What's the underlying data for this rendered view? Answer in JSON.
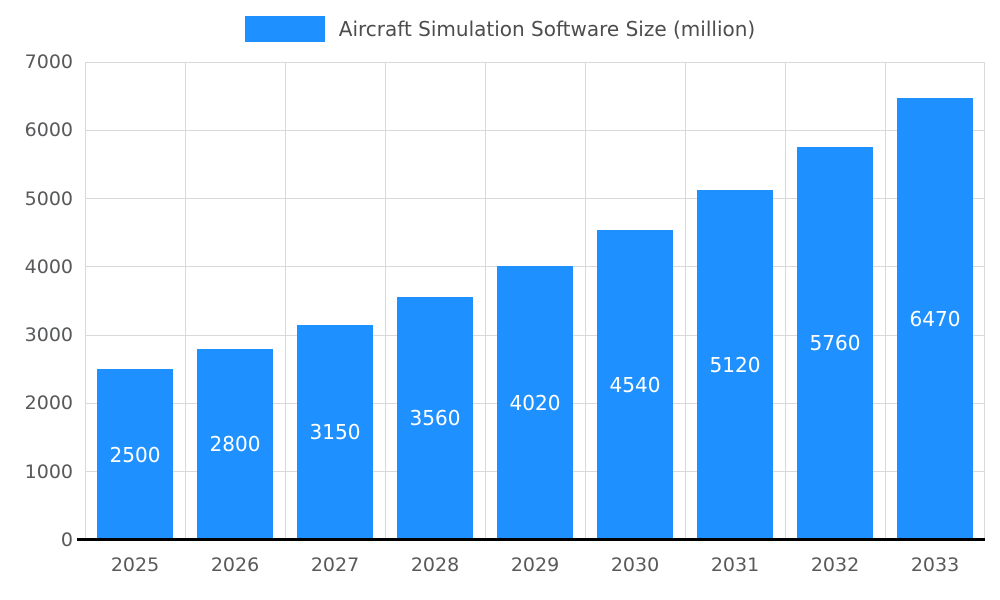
{
  "chart_data": {
    "type": "bar",
    "title": "Aircraft Simulation Software Size (million)",
    "categories": [
      "2025",
      "2026",
      "2027",
      "2028",
      "2029",
      "2030",
      "2031",
      "2032",
      "2033"
    ],
    "values": [
      2500,
      2800,
      3150,
      3560,
      4020,
      4540,
      5120,
      5760,
      6470
    ],
    "xlabel": "",
    "ylabel": "",
    "ylim": [
      0,
      7000
    ],
    "yticks": [
      0,
      1000,
      2000,
      3000,
      4000,
      5000,
      6000,
      7000
    ],
    "grid": "on",
    "legend_position": "top-center",
    "value_labels": "inside-center",
    "colors": {
      "bar": "#1E90FF",
      "grid": "#d9d9d9",
      "axis": "#000000",
      "tick_label": "#58595b",
      "title": "#4d4d4d",
      "value_label": "#ffffff",
      "background": "#ffffff"
    }
  }
}
